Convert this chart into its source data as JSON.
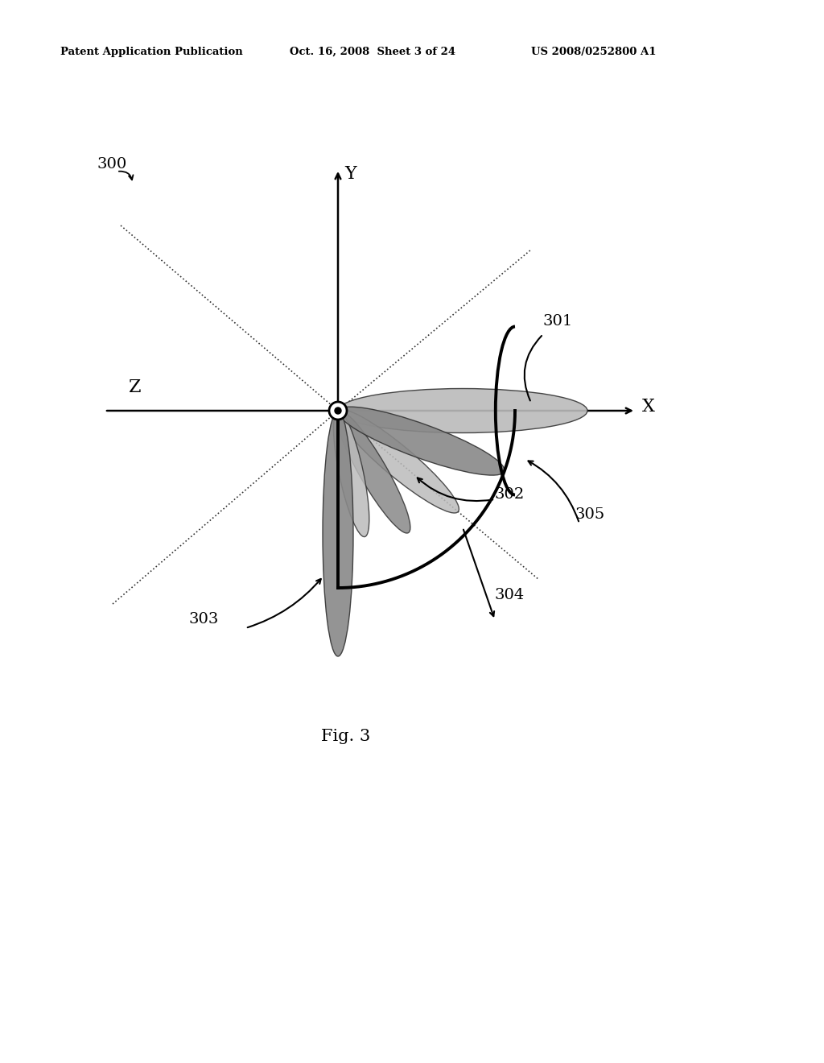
{
  "bg_color": "#ffffff",
  "header_left": "Patent Application Publication",
  "header_mid": "Oct. 16, 2008  Sheet 3 of 24",
  "header_right": "US 2008/0252800 A1",
  "fig_label": "Fig. 3",
  "label_300": "300",
  "label_301": "301",
  "label_302": "302",
  "label_303": "303",
  "label_304": "304",
  "label_305": "305",
  "lobe_dark": "#888888",
  "lobe_light": "#bbbbbb",
  "lobe_edge": "#333333"
}
